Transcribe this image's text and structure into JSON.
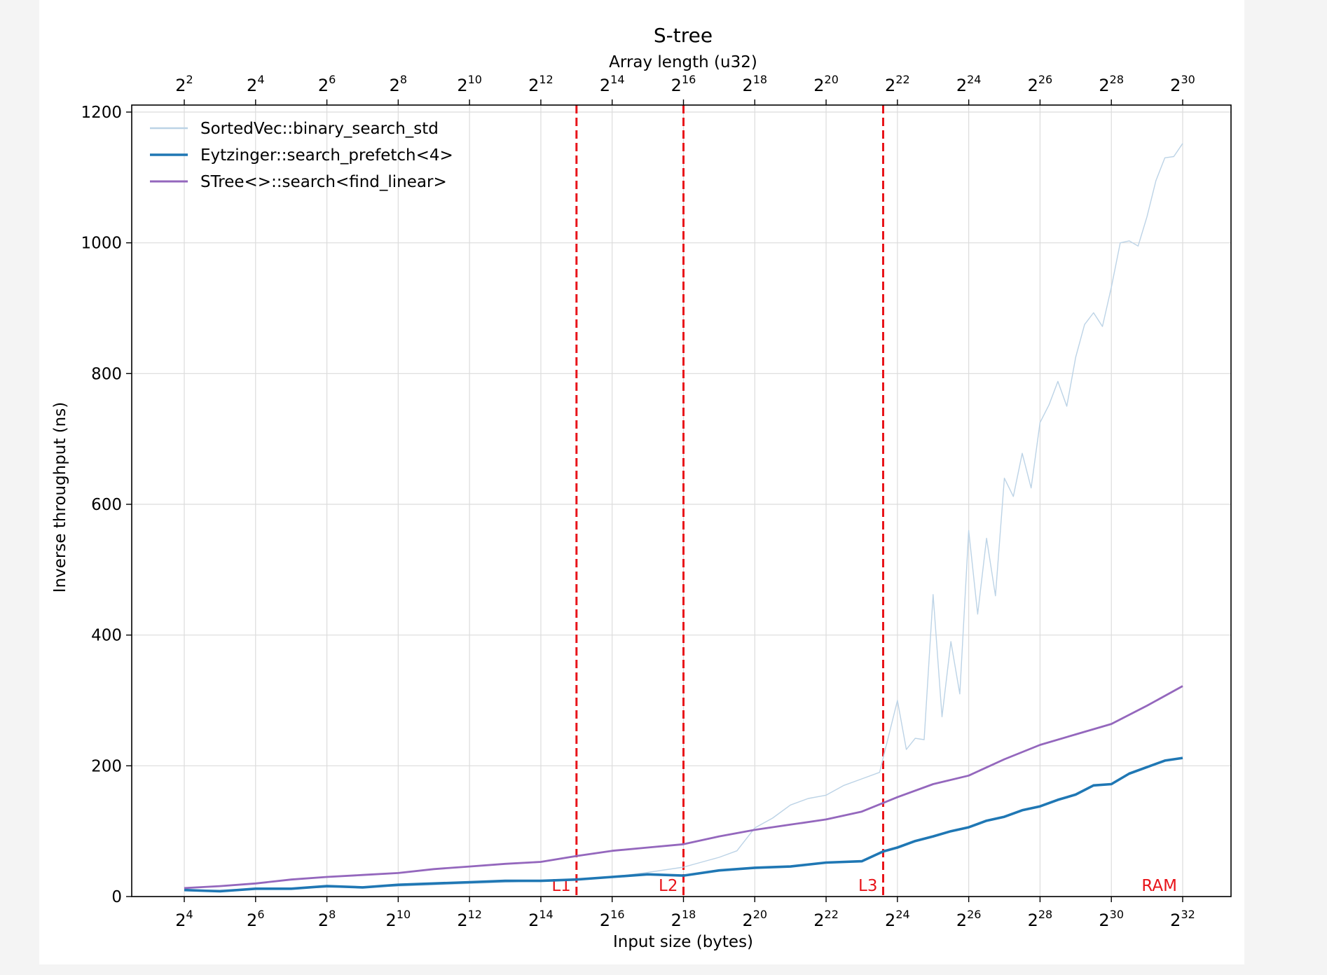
{
  "chart_data": {
    "type": "line",
    "title": "S-tree",
    "xlabel": "Input size (bytes)",
    "ylabel": "Inverse throughput (ns)",
    "top_xlabel": "Array length (u32)",
    "xscale": "log2",
    "x_ticks_bottom": [
      {
        "base": "2",
        "exp": "4"
      },
      {
        "base": "2",
        "exp": "6"
      },
      {
        "base": "2",
        "exp": "8"
      },
      {
        "base": "2",
        "exp": "10"
      },
      {
        "base": "2",
        "exp": "12"
      },
      {
        "base": "2",
        "exp": "14"
      },
      {
        "base": "2",
        "exp": "16"
      },
      {
        "base": "2",
        "exp": "18"
      },
      {
        "base": "2",
        "exp": "20"
      },
      {
        "base": "2",
        "exp": "22"
      },
      {
        "base": "2",
        "exp": "24"
      },
      {
        "base": "2",
        "exp": "26"
      },
      {
        "base": "2",
        "exp": "28"
      },
      {
        "base": "2",
        "exp": "30"
      },
      {
        "base": "2",
        "exp": "32"
      }
    ],
    "x_ticks_top": [
      {
        "base": "2",
        "exp": "2"
      },
      {
        "base": "2",
        "exp": "4"
      },
      {
        "base": "2",
        "exp": "6"
      },
      {
        "base": "2",
        "exp": "8"
      },
      {
        "base": "2",
        "exp": "10"
      },
      {
        "base": "2",
        "exp": "12"
      },
      {
        "base": "2",
        "exp": "14"
      },
      {
        "base": "2",
        "exp": "16"
      },
      {
        "base": "2",
        "exp": "18"
      },
      {
        "base": "2",
        "exp": "20"
      },
      {
        "base": "2",
        "exp": "22"
      },
      {
        "base": "2",
        "exp": "24"
      },
      {
        "base": "2",
        "exp": "26"
      },
      {
        "base": "2",
        "exp": "28"
      },
      {
        "base": "2",
        "exp": "30"
      }
    ],
    "y_ticks": [
      "0",
      "200",
      "400",
      "600",
      "800",
      "1000",
      "1200"
    ],
    "ylim": [
      0,
      1200
    ],
    "grid": true,
    "legend_position": "top-left",
    "cache_levels": [
      {
        "label": "L1",
        "log2_bytes": 15
      },
      {
        "label": "L2",
        "log2_bytes": 18
      },
      {
        "label": "L3",
        "log2_bytes": 23.6
      }
    ],
    "ram_label": "RAM",
    "series": [
      {
        "name": "SortedVec::binary_search_std",
        "color": "#bcd3e6",
        "log2_x": [
          4,
          5,
          6,
          7,
          8,
          9,
          10,
          11,
          12,
          13,
          14,
          15,
          16,
          17,
          18,
          19,
          19.5,
          20,
          20.5,
          21,
          21.5,
          22,
          22.5,
          23,
          23.5,
          24,
          24.25,
          24.5,
          24.75,
          25,
          25.25,
          25.5,
          25.75,
          26,
          26.25,
          26.5,
          26.75,
          27,
          27.25,
          27.5,
          27.75,
          28,
          28.25,
          28.5,
          28.75,
          29,
          29.25,
          29.5,
          29.75,
          30,
          30.25,
          30.5,
          30.75,
          31,
          31.25,
          31.5,
          31.75,
          32
        ],
        "y": [
          10,
          10,
          12,
          13,
          14,
          15,
          16,
          18,
          20,
          22,
          24,
          27,
          30,
          37,
          45,
          60,
          70,
          105,
          120,
          140,
          150,
          155,
          170,
          180,
          190,
          300,
          225,
          242,
          240,
          462,
          275,
          390,
          310,
          560,
          432,
          548,
          460,
          640,
          612,
          678,
          625,
          725,
          752,
          788,
          750,
          825,
          875,
          893,
          872,
          932,
          1000,
          1003,
          995,
          1040,
          1095,
          1130,
          1132,
          1152
        ]
      },
      {
        "name": "Eytzinger::search_prefetch<4>",
        "color": "#1f77b4",
        "log2_x": [
          4,
          5,
          6,
          7,
          8,
          9,
          10,
          11,
          12,
          13,
          14,
          15,
          16,
          17,
          18,
          19,
          20,
          21,
          22,
          23,
          23.6,
          24,
          24.5,
          25,
          25.5,
          26,
          26.5,
          27,
          27.5,
          28,
          28.5,
          29,
          29.5,
          30,
          30.5,
          31,
          31.5,
          32
        ],
        "y": [
          10,
          8,
          12,
          12,
          16,
          14,
          18,
          20,
          22,
          24,
          24,
          26,
          30,
          34,
          32,
          40,
          44,
          46,
          52,
          54,
          69,
          75,
          85,
          92,
          100,
          106,
          116,
          122,
          132,
          138,
          148,
          156,
          170,
          172,
          188,
          198,
          208,
          212
        ]
      },
      {
        "name": "STree<>::search<find_linear>",
        "color": "#9467bd",
        "log2_x": [
          4,
          5,
          6,
          7,
          8,
          9,
          10,
          11,
          12,
          13,
          14,
          15,
          16,
          17,
          18,
          19,
          20,
          21,
          22,
          23,
          24,
          25,
          26,
          27,
          28,
          29,
          30,
          31,
          32
        ],
        "y": [
          13,
          16,
          20,
          26,
          30,
          33,
          36,
          42,
          46,
          50,
          53,
          62,
          70,
          75,
          80,
          92,
          102,
          110,
          118,
          130,
          152,
          172,
          185,
          210,
          232,
          248,
          264,
          292,
          322
        ]
      }
    ]
  }
}
